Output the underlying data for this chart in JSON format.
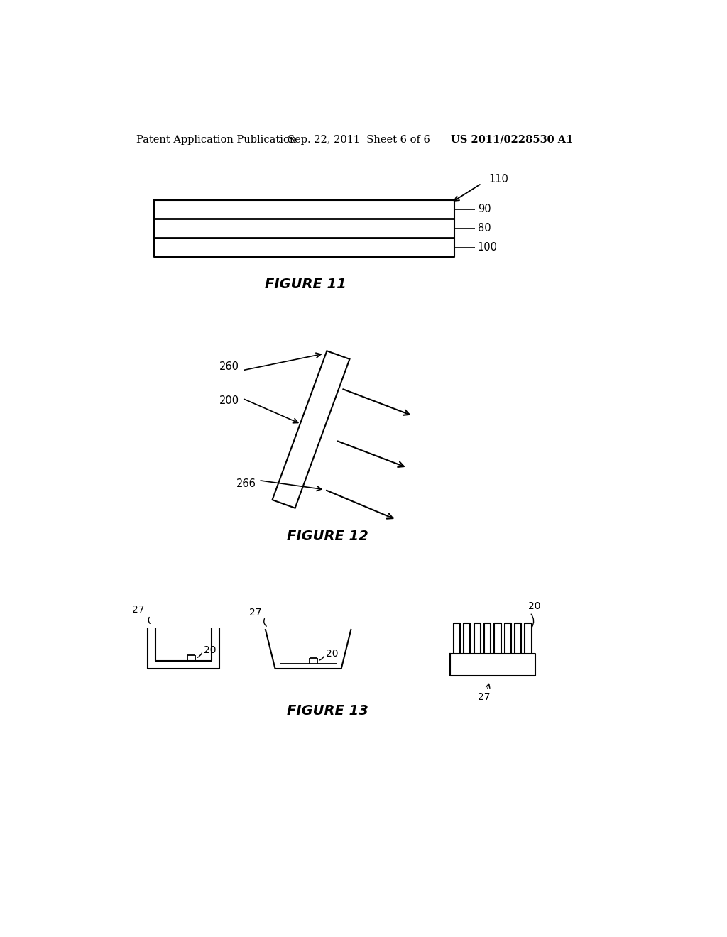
{
  "bg_color": "#ffffff",
  "header_left": "Patent Application Publication",
  "header_center": "Sep. 22, 2011  Sheet 6 of 6",
  "header_right": "US 2011/0228530 A1",
  "fig11_label": "FIGURE 11",
  "fig12_label": "FIGURE 12",
  "fig13_label": "FIGURE 13",
  "line_color": "#000000",
  "text_color": "#000000"
}
